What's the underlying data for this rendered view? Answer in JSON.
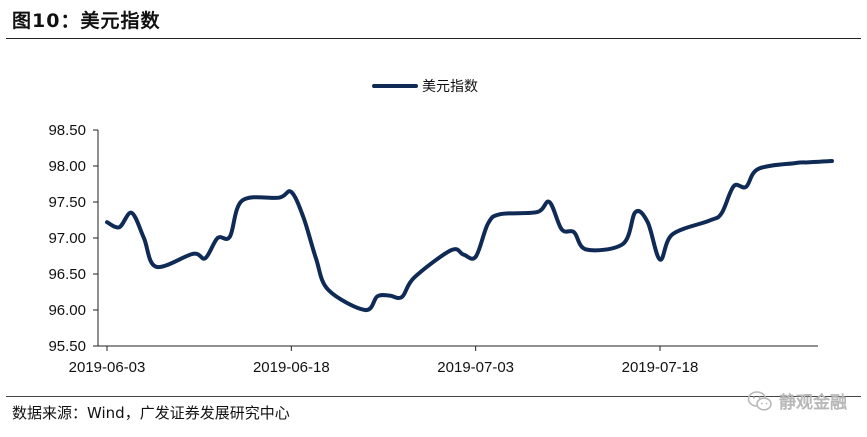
{
  "figure": {
    "title": "图10：美元指数",
    "source": "数据来源：Wind，广发证券发展研究中心",
    "watermark": "静观金融",
    "watermark_icon": "wechat-icon"
  },
  "colors": {
    "series": "#0f2a55",
    "axis": "#222222"
  },
  "chart_data": {
    "type": "line",
    "title": "",
    "xlabel": "",
    "ylabel": "",
    "legend_position": "top-center",
    "grid": false,
    "ylim": [
      95.5,
      98.5
    ],
    "yticks": [
      "95.50",
      "96.00",
      "96.50",
      "97.00",
      "97.50",
      "98.00",
      "98.50"
    ],
    "xticks": [
      "2019-06-03",
      "2019-06-18",
      "2019-07-03",
      "2019-07-18"
    ],
    "xlim": [
      "2019-06-03",
      "2019-08-01"
    ],
    "series": [
      {
        "name": "美元指数",
        "x": [
          "2019-06-03",
          "2019-06-04",
          "2019-06-05",
          "2019-06-06",
          "2019-06-07",
          "2019-06-10",
          "2019-06-11",
          "2019-06-12",
          "2019-06-13",
          "2019-06-14",
          "2019-06-17",
          "2019-06-18",
          "2019-06-19",
          "2019-06-20",
          "2019-06-21",
          "2019-06-24",
          "2019-06-25",
          "2019-06-26",
          "2019-06-27",
          "2019-06-28",
          "2019-07-01",
          "2019-07-02",
          "2019-07-03",
          "2019-07-04",
          "2019-07-05",
          "2019-07-08",
          "2019-07-09",
          "2019-07-10",
          "2019-07-11",
          "2019-07-12",
          "2019-07-15",
          "2019-07-16",
          "2019-07-17",
          "2019-07-18",
          "2019-07-19",
          "2019-07-22",
          "2019-07-23",
          "2019-07-24",
          "2019-07-25",
          "2019-07-26",
          "2019-07-29",
          "2019-07-30",
          "2019-07-31",
          "2019-08-01"
        ],
        "values": [
          97.22,
          97.15,
          97.35,
          97.0,
          96.6,
          96.78,
          96.72,
          97.0,
          97.02,
          97.52,
          97.56,
          97.64,
          97.28,
          96.72,
          96.28,
          96.0,
          96.19,
          96.2,
          96.18,
          96.45,
          96.83,
          96.77,
          96.74,
          97.2,
          97.33,
          97.36,
          97.5,
          97.12,
          97.08,
          96.84,
          96.92,
          97.36,
          97.22,
          96.7,
          97.05,
          97.24,
          97.34,
          97.72,
          97.71,
          97.96,
          98.04,
          98.05,
          98.06,
          98.07
        ]
      }
    ]
  }
}
